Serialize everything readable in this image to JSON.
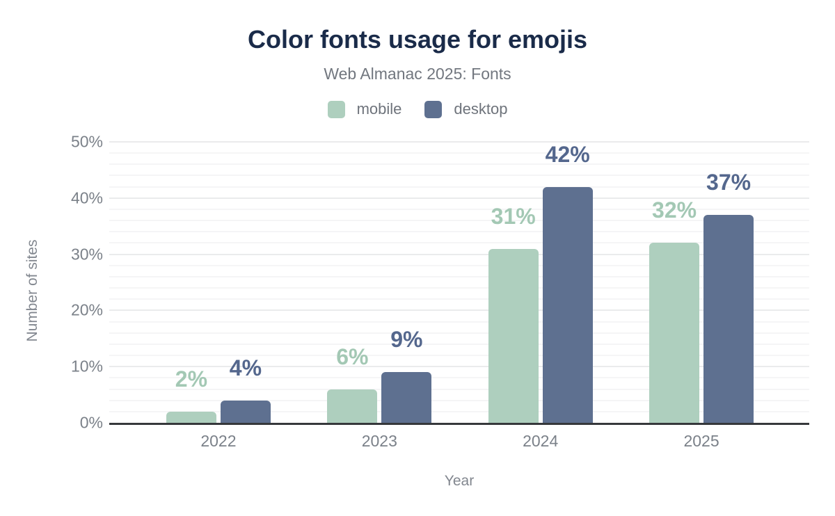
{
  "header": {
    "title": "Color fonts usage for emojis",
    "subtitle": "Web Almanac 2025: Fonts"
  },
  "legend": [
    {
      "label": "mobile",
      "color": "#aecfbe"
    },
    {
      "label": "desktop",
      "color": "#5e7090"
    }
  ],
  "palette": {
    "title_text": "#1a2b49",
    "subtitle_text": "#72777f",
    "axis_text": "#7b8189",
    "axis_line": "#36383b",
    "mobile": "#aecfbe",
    "desktop": "#5e7090"
  },
  "chart_data": {
    "type": "bar",
    "title": "Color fonts usage for emojis",
    "subtitle": "Web Almanac 2025: Fonts",
    "categories": [
      "2022",
      "2023",
      "2024",
      "2025"
    ],
    "series": [
      {
        "name": "mobile",
        "color": "#aecfbe",
        "label_color": "#a3c8b4",
        "values": [
          2,
          6,
          31,
          32
        ],
        "labels": [
          "2%",
          "6%",
          "31%",
          "32%"
        ]
      },
      {
        "name": "desktop",
        "color": "#5e7090",
        "label_color": "#54678d",
        "values": [
          4,
          9,
          42,
          37
        ],
        "labels": [
          "4%",
          "9%",
          "42%",
          "37%"
        ]
      }
    ],
    "xlabel": "Year",
    "ylabel": "Number of sites",
    "ylim": [
      0,
      50
    ],
    "yticks": [
      {
        "value": 0,
        "label": "0%"
      },
      {
        "value": 10,
        "label": "10%"
      },
      {
        "value": 20,
        "label": "20%"
      },
      {
        "value": 30,
        "label": "30%"
      },
      {
        "value": 40,
        "label": "40%"
      },
      {
        "value": 50,
        "label": "50%"
      }
    ],
    "minor_grid_step": 2,
    "grid": true,
    "legend_position": "top"
  }
}
